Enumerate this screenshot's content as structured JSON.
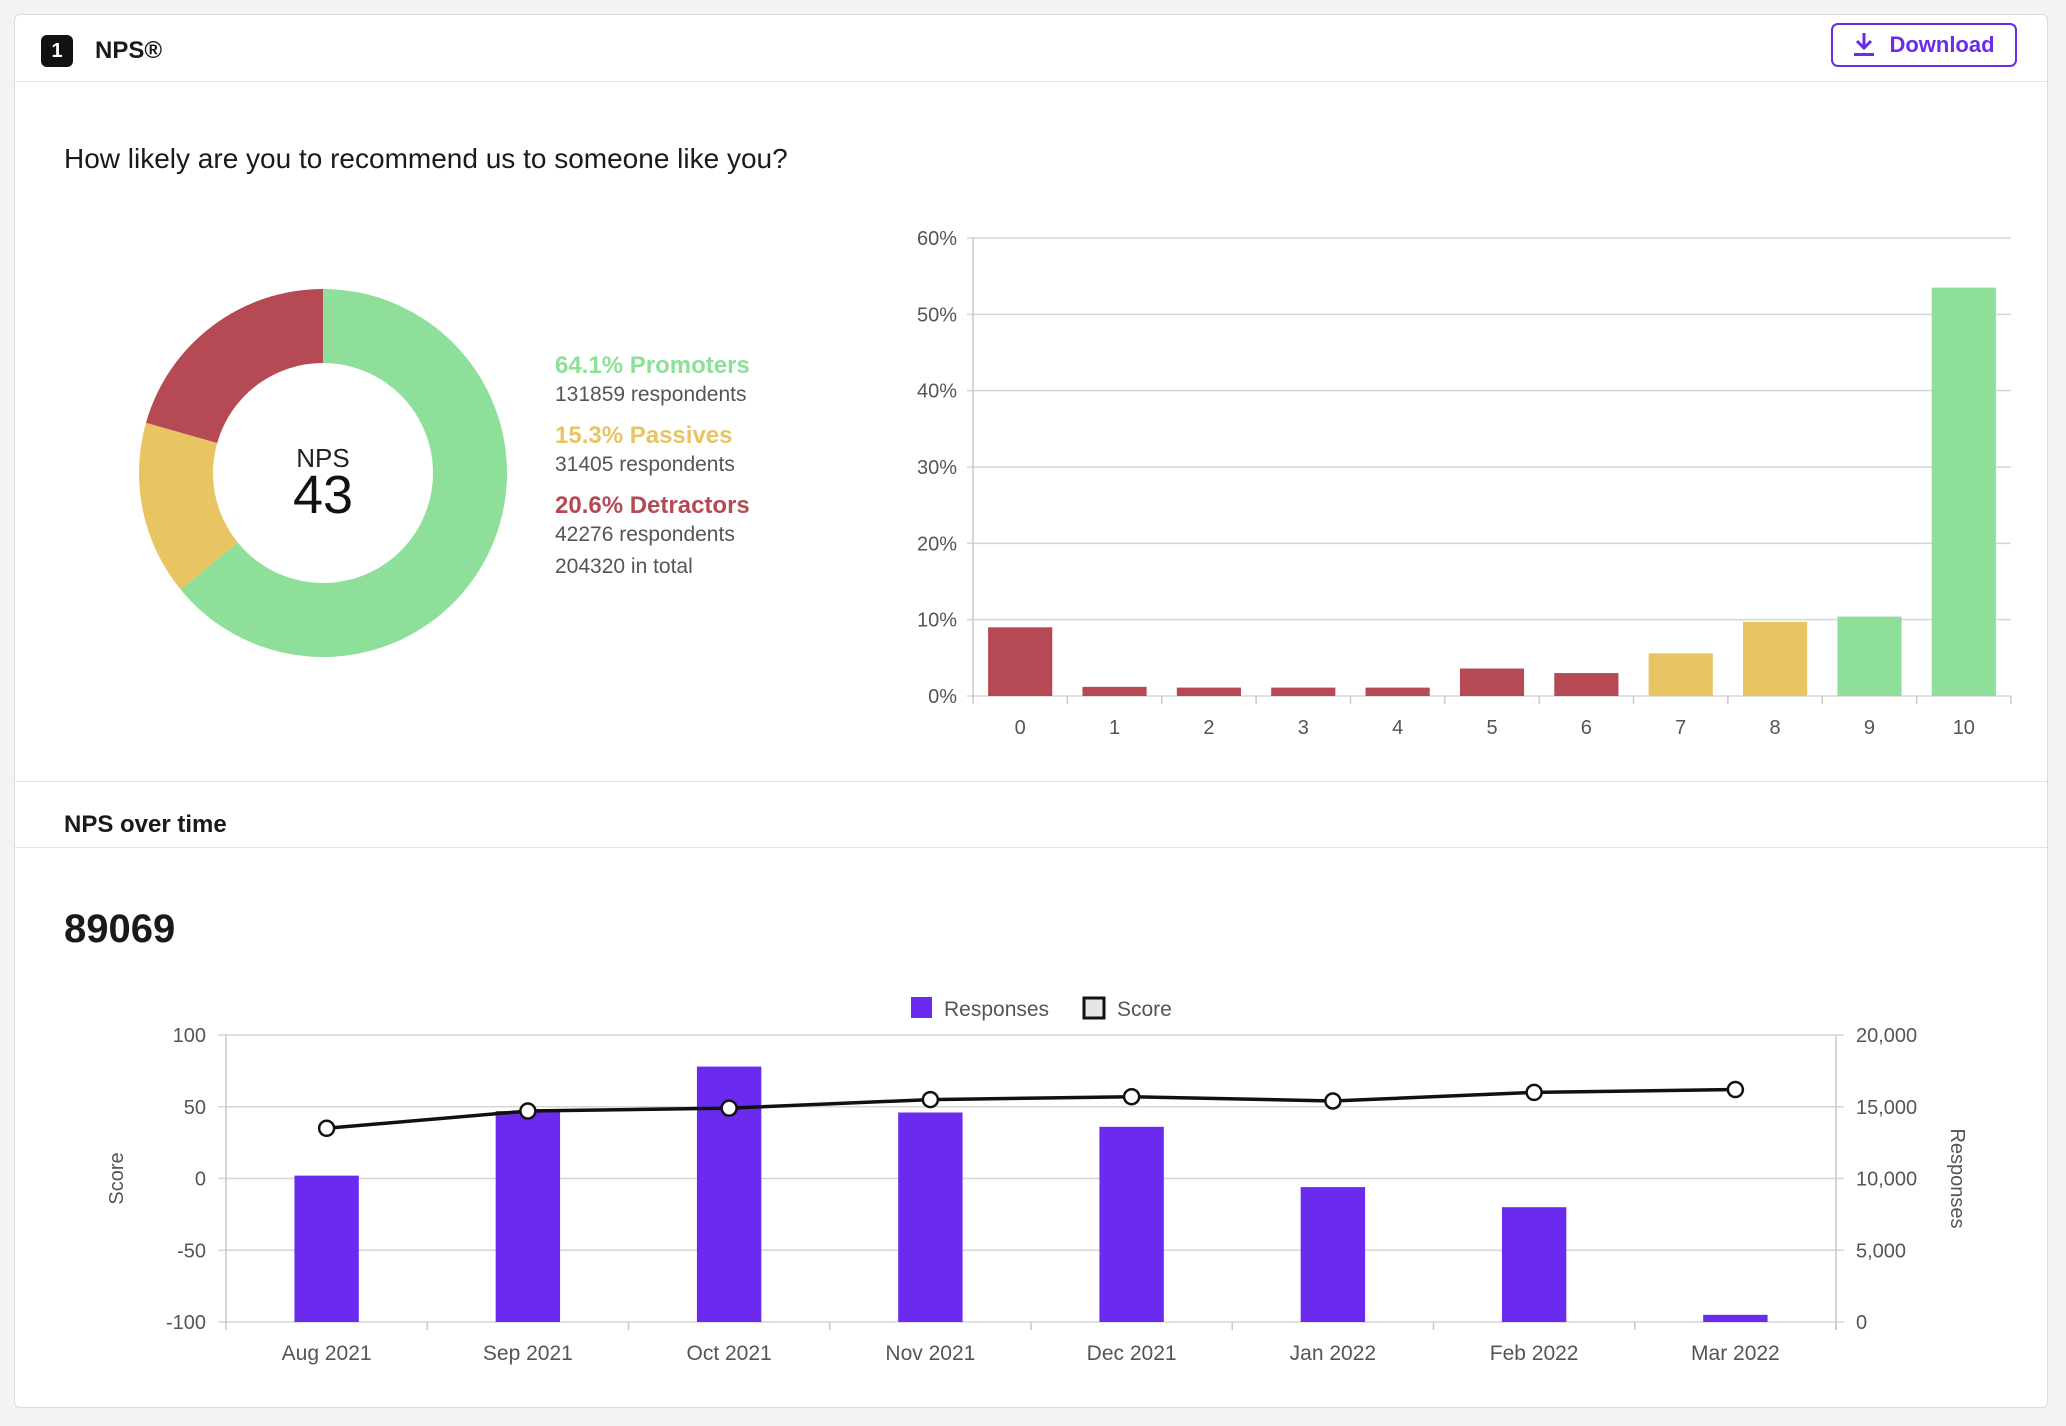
{
  "header": {
    "question_number": "1",
    "title": "NPS®",
    "download_label": "Download"
  },
  "question_text": "How likely are you to recommend us to someone like you?",
  "donut": {
    "center_label": "NPS",
    "center_value": "43"
  },
  "legend": {
    "promoters": {
      "title": "64.1% Promoters",
      "sub": "131859 respondents"
    },
    "passives": {
      "title": "15.3% Passives",
      "sub": "31405 respondents"
    },
    "detractors": {
      "title": "20.6% Detractors",
      "sub": "42276 respondents"
    },
    "total": "204320 in total"
  },
  "colors": {
    "promoter": "#8ddf9a",
    "passive": "#e8c463",
    "detractor": "#b54a55",
    "responses": "#6a2bee",
    "score_line": "#111111"
  },
  "over_time": {
    "section_title": "NPS over time",
    "big_number": "89069"
  },
  "chart_data": [
    {
      "type": "pie",
      "donut": true,
      "labels": [
        "Promoters",
        "Passives",
        "Detractors"
      ],
      "values": [
        64.1,
        15.3,
        20.6
      ]
    },
    {
      "type": "bar",
      "categories": [
        "0",
        "1",
        "2",
        "3",
        "4",
        "5",
        "6",
        "7",
        "8",
        "9",
        "10"
      ],
      "values": [
        9.0,
        1.2,
        1.1,
        1.1,
        1.1,
        3.6,
        3.0,
        5.6,
        9.7,
        10.4,
        53.5
      ],
      "groups": [
        "detractor",
        "detractor",
        "detractor",
        "detractor",
        "detractor",
        "detractor",
        "detractor",
        "passive",
        "passive",
        "promoter",
        "promoter"
      ],
      "ylim": [
        0,
        60
      ],
      "ytick_labels": [
        "0%",
        "10%",
        "20%",
        "30%",
        "40%",
        "50%",
        "60%"
      ],
      "grid": true
    },
    {
      "type": "bar",
      "categories": [
        "Aug 2021",
        "Sep 2021",
        "Oct 2021",
        "Nov 2021",
        "Dec 2021",
        "Jan 2022",
        "Feb 2022",
        "Mar 2022"
      ],
      "legend_position": "top",
      "series": [
        {
          "name": "Responses",
          "kind": "bar",
          "axis": "right",
          "values": [
            10200,
            14700,
            17800,
            14600,
            13600,
            9400,
            8000,
            500
          ]
        },
        {
          "name": "Score",
          "kind": "line",
          "axis": "left",
          "values": [
            35,
            47,
            49,
            55,
            57,
            54,
            60,
            62
          ]
        }
      ],
      "ylabel_left": "Score",
      "ylabel_right": "Responses",
      "ylim_left": [
        -100,
        100
      ],
      "ylim_right": [
        0,
        20000
      ],
      "yticks_left": [
        "100",
        "50",
        "0",
        "-50",
        "-100"
      ],
      "yticks_right": [
        "20,000",
        "15,000",
        "10,000",
        "5,000",
        "0"
      ],
      "grid": true
    }
  ]
}
